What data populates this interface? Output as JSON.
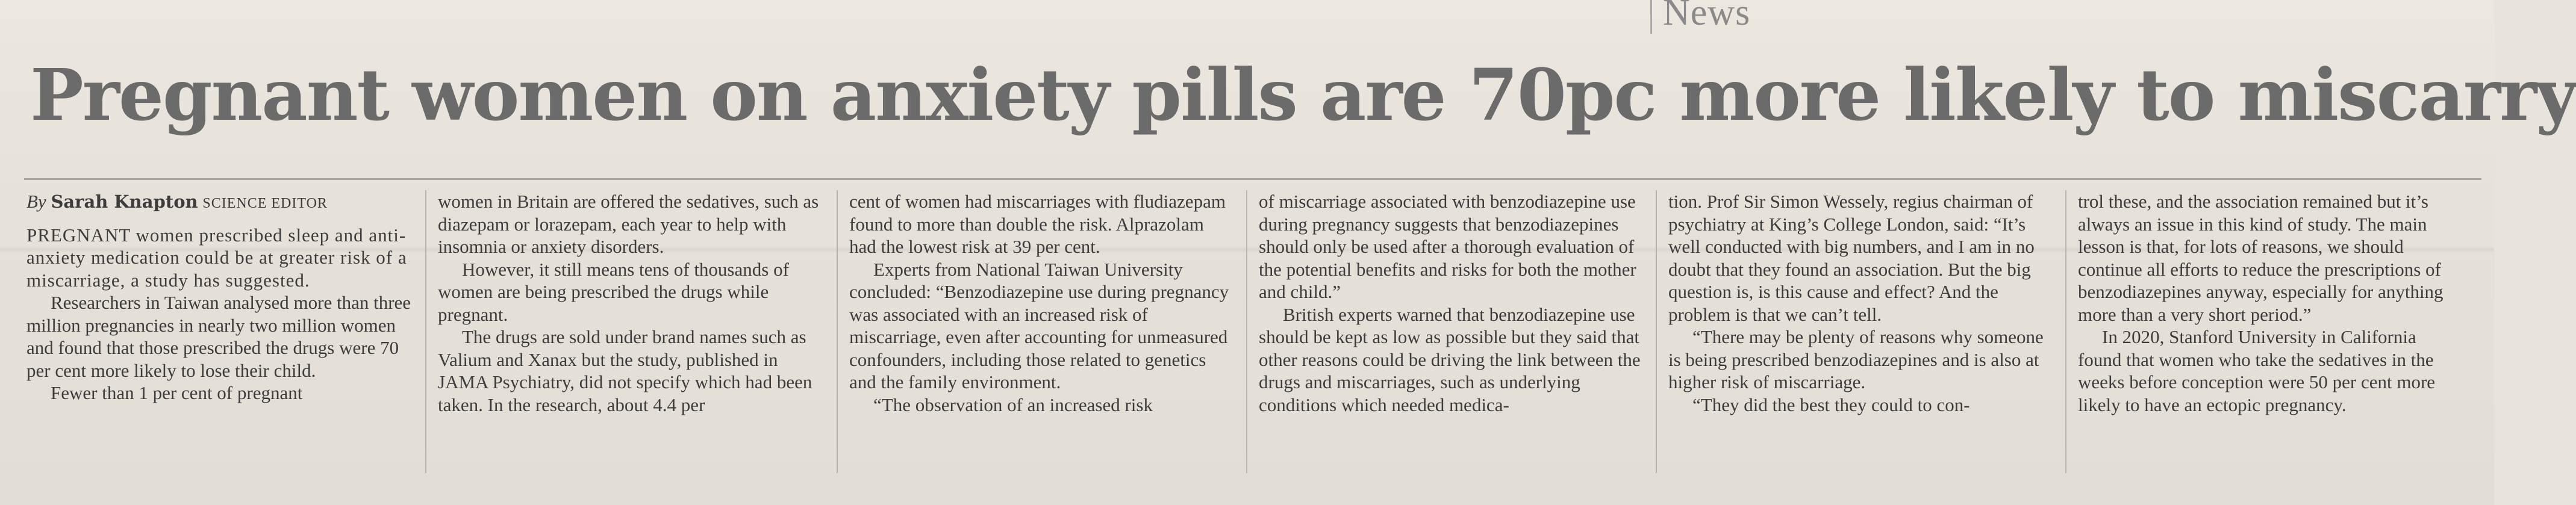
{
  "section": "News",
  "headline": "Pregnant women on anxiety pills are 70pc more likely to miscarry",
  "byline": {
    "prefix": "By",
    "author": "Sarah Knapton",
    "role": "SCIENCE EDITOR"
  },
  "article": {
    "col1": [
      "PREGNANT women prescribed sleep and anti-anxiety medication could be at greater risk of a miscarriage, a study has suggested.",
      "Researchers in Taiwan analysed more than three million pregnancies in nearly two million women and found that those prescribed the drugs were 70 per cent more likely to lose their child.",
      "Fewer than 1 per cent of pregnant"
    ],
    "col2": [
      "women in Britain are offered the sedatives, such as diazepam or lorazepam, each year to help with insomnia or anxiety disorders.",
      "However, it still means tens of thousands of women are being prescribed the drugs while pregnant.",
      "The drugs are sold under brand names such as Valium and Xanax but the study, published in JAMA Psychiatry, did not specify which had been taken. In the research, about 4.4 per"
    ],
    "col3": [
      "cent of women had miscarriages with fludiazepam found to more than double the risk. Alprazolam had the lowest risk at 39 per cent.",
      "Experts from National Taiwan University concluded: “Benzodiazepine use during pregnancy was associated with an increased risk of miscarriage, even after accounting for unmeasured confounders, including those related to genetics and the family environment.",
      "“The observation of an increased risk"
    ],
    "col4": [
      "of miscarriage associated with benzodiazepine use during pregnancy suggests that benzodiazepines should only be used after a thorough evaluation of the potential benefits and risks for both the mother and child.”",
      "British experts warned that benzodiazepine use should be kept as low as possible but they said that other reasons could be driving the link between the drugs and miscarriages, such as underlying conditions which needed medica-"
    ],
    "col5": [
      "tion. Prof Sir Simon Wessely, regius chairman of psychiatry at King’s College London, said: “It’s well conducted with big numbers, and I am in no doubt that they found an association. But the big question is, is this cause and effect? And the problem is that we can’t tell.",
      "“There may be plenty of reasons why someone is being prescribed benzodiazepines and is also at higher risk of miscarriage.",
      "“They did the best they could to con-"
    ],
    "col6": [
      "trol these, and the association remained but it’s always an issue in this kind of study. The main lesson is that, for lots of reasons, we should continue all efforts to reduce the prescriptions of benzodiazepines anyway, especially for anything more than a very short period.”",
      "In 2020, Stanford University in California found that women who take the sedatives in the weeks before conception were 50 per cent more likely to have an ectopic pregnancy."
    ]
  }
}
